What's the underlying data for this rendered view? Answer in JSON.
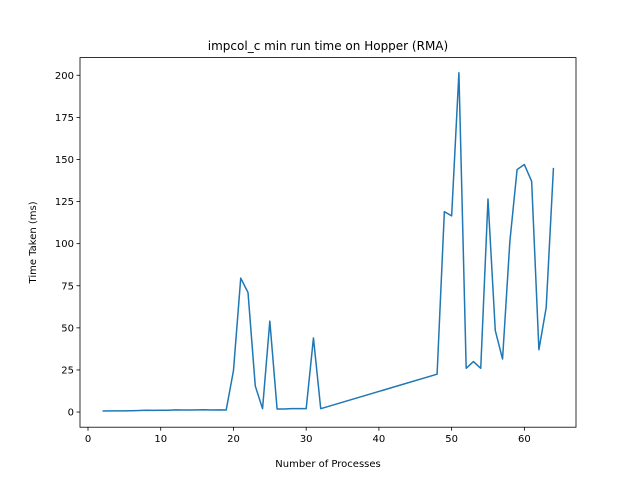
{
  "chart_data": {
    "type": "line",
    "title": "impcol_c min run time on Hopper (RMA)",
    "xlabel": "Number of Processes",
    "ylabel": "Time Taken (ms)",
    "xlim": [
      -1.1,
      67.1
    ],
    "ylim": [
      -9.0,
      210.5
    ],
    "xticks": [
      0,
      10,
      20,
      30,
      40,
      50,
      60
    ],
    "yticks": [
      0,
      25,
      50,
      75,
      100,
      125,
      150,
      175,
      200
    ],
    "grid": false,
    "legend": "none",
    "series": [
      {
        "color": "#1f77b4",
        "x": [
          2,
          3,
          4,
          5,
          6,
          7,
          8,
          9,
          10,
          11,
          12,
          13,
          14,
          15,
          16,
          17,
          18,
          19,
          20,
          21,
          22,
          23,
          24,
          25,
          26,
          27,
          28,
          29,
          30,
          31,
          32,
          48,
          49,
          50,
          51,
          52,
          53,
          54,
          55,
          56,
          57,
          58,
          59,
          60,
          61,
          62,
          63,
          64
        ],
        "y": [
          0.6,
          0.7,
          0.7,
          0.7,
          0.8,
          0.9,
          1.1,
          1.0,
          1.1,
          1.1,
          1.3,
          1.2,
          1.2,
          1.3,
          1.4,
          1.2,
          1.3,
          1.2,
          24.5,
          79.5,
          71.0,
          15.5,
          2.0,
          54.0,
          1.8,
          1.8,
          2.0,
          2.0,
          2.0,
          44.0,
          2.0,
          22.5,
          119.0,
          116.5,
          201.5,
          26.0,
          30.0,
          26.0,
          126.5,
          48.5,
          31.5,
          101.0,
          144.0,
          147.0,
          137.0,
          37.0,
          62.0,
          145.0
        ]
      }
    ]
  }
}
